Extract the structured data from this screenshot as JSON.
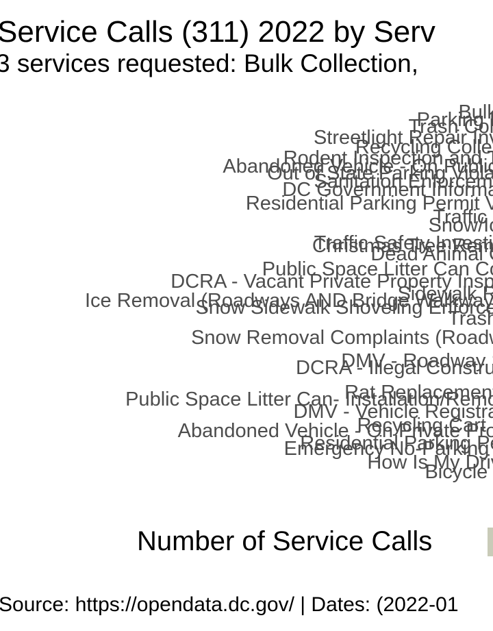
{
  "colors": {
    "label": "#4d4d4d",
    "legend_swatch": "#c9cbb8",
    "text": "#000000"
  },
  "chart_data": {
    "type": "bar",
    "title": "Service Calls (311) 2022 by Serv",
    "subtitle": "3 services requested: Bulk Collection,",
    "xlabel": "Number of Service Calls",
    "caption": "Source: https://opendata.dc.gov/ | Dates: (2022-01",
    "legend": "right",
    "categories": [
      "Bulk Colle",
      "Parking Enforce",
      "Trash Collection",
      "Streetlight Repair Investig",
      "Recycling Collection",
      "Rodent Inspection and Trea",
      "Abandoned Vehicle - On Public Pro",
      "Out of State Parking Violation",
      "Sanitation Enforcement",
      "DC Government Information",
      "Residential Parking Permit Vio",
      "Traffic Signal",
      "Snow/Ice Re",
      "Traffic Safety Investigat",
      "Christmas Tree Removal",
      "Dead Animal Colle",
      "Public Space Litter Can Colle",
      "DCRA - Vacant Private Property Inspection",
      "Sidewalk Repair",
      "Ice Removal (Roadways AND Bridge Walkways)",
      "Snow Sidewalk Shoveling Enforcement",
      "Trash Cart",
      "Snow Removal Complaints (Roadways)",
      "DMV - Roadway Signs",
      "DCRA - Illegal Construction",
      "Rat Replacement Cart",
      "Public Space Litter Can- Installation/Removal",
      "DMV - Vehicle Registration",
      "Abandoned Vehicle - On Private Property",
      "Recycling Cart",
      "Emergency No-Parking Signs",
      "Residential Parking Permit",
      "How Is My Driving",
      "Bicycle Serv"
    ]
  }
}
